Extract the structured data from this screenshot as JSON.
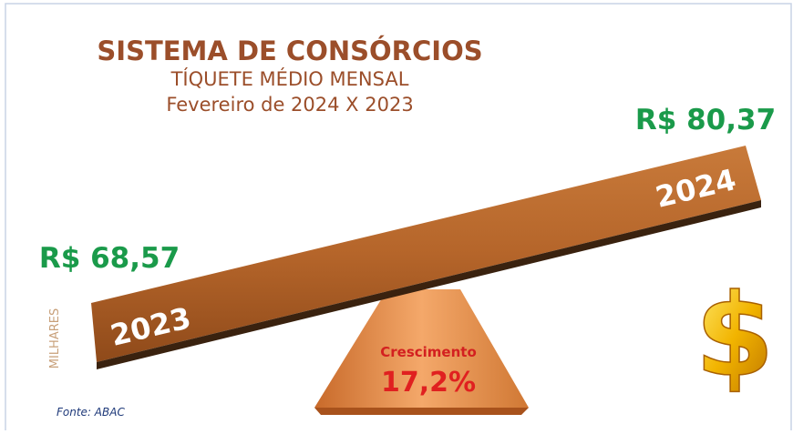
{
  "header": {
    "title": "SISTEMA DE CONSÓRCIOS",
    "subtitle": "TÍQUETE MÉDIO MENSAL",
    "period": "Fevereiro de 2024 X 2023"
  },
  "left": {
    "amount": "R$ 68,57",
    "year": "2023"
  },
  "right": {
    "amount": "R$ 80,37",
    "year": "2024"
  },
  "growth": {
    "label": "Crescimento",
    "value": "17,2%"
  },
  "unit_label": "MILHARES",
  "symbol": "$",
  "source": "Fonte: ABAC"
}
